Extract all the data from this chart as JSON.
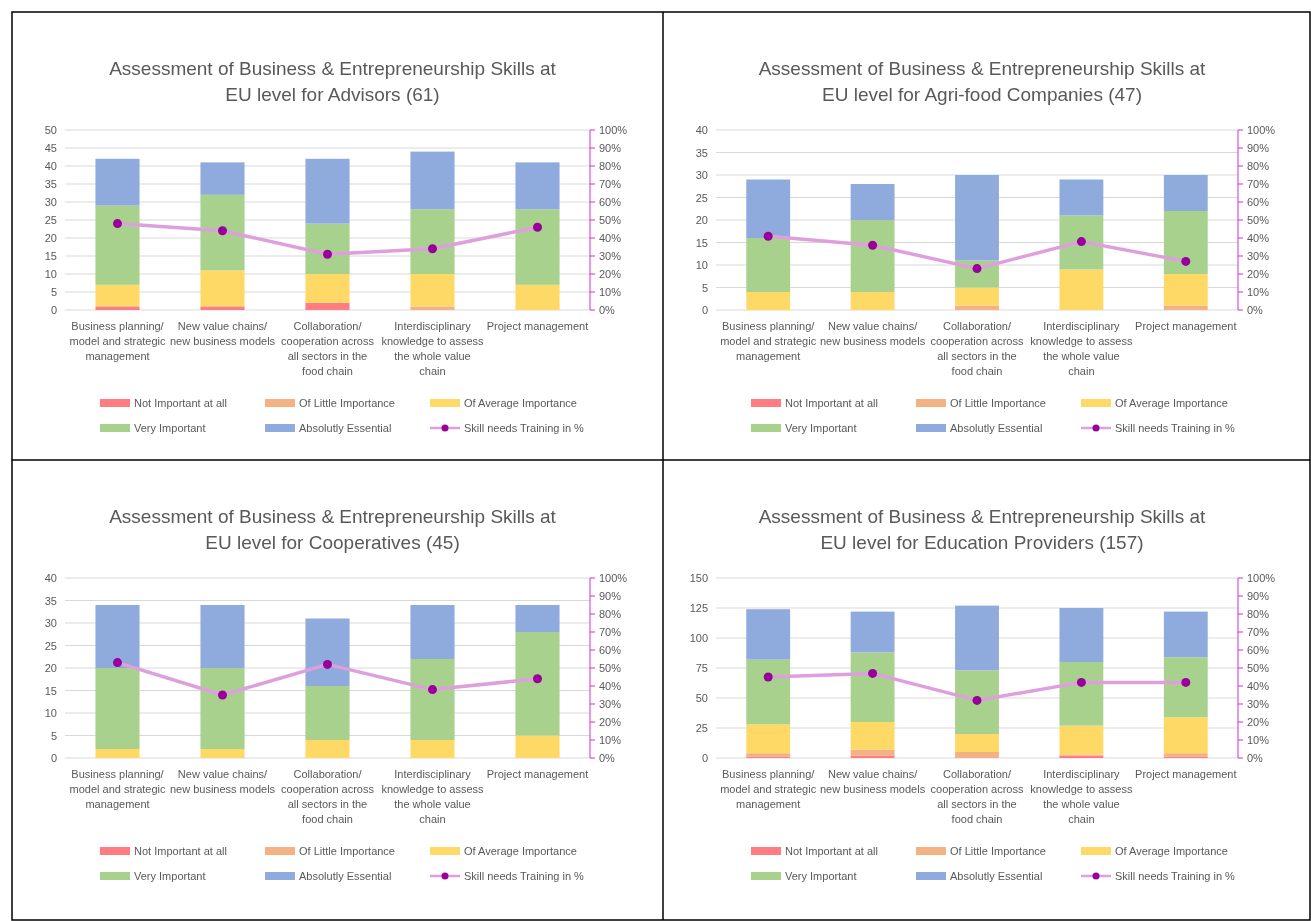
{
  "chart_data": [
    {
      "type": "bar",
      "title": "Assessment of Business & Entrepreneurship Skills at EU level for Advisors (61)",
      "stacked": true,
      "grid": "y",
      "legend": "bottom",
      "categories": [
        "Business planning/ model and strategic management",
        "New value chains/ new business models",
        "Collaboration/ cooperation across all sectors in the food chain",
        "Interdisciplinary knowledge to assess the whole value chain",
        "Project management"
      ],
      "ylim": [
        0,
        50
      ],
      "yticks": [
        0,
        5,
        10,
        15,
        20,
        25,
        30,
        35,
        40,
        45,
        50
      ],
      "y2lim": [
        0,
        100
      ],
      "y2ticks": [
        {
          "value": 0,
          "label": "0%"
        },
        {
          "value": 10,
          "label": "10%"
        },
        {
          "value": 20,
          "label": "20%"
        },
        {
          "value": 30,
          "label": "30%"
        },
        {
          "value": 40,
          "label": "40%"
        },
        {
          "value": 50,
          "label": "50%"
        },
        {
          "value": 60,
          "label": "60%"
        },
        {
          "value": 70,
          "label": "70%"
        },
        {
          "value": 80,
          "label": "80%"
        },
        {
          "value": 90,
          "label": "90%"
        },
        {
          "value": 100,
          "label": "100%"
        }
      ],
      "series": [
        {
          "name": "Not Important at all",
          "color": "#ff7c80",
          "values": [
            1,
            1,
            2,
            0,
            0
          ]
        },
        {
          "name": "Of Little Importance",
          "color": "#f4b183",
          "values": [
            0,
            0,
            0,
            1,
            0
          ]
        },
        {
          "name": "Of Average Importance",
          "color": "#ffd966",
          "values": [
            6,
            10,
            8,
            9,
            7
          ]
        },
        {
          "name": "Very Important",
          "color": "#a9d18e",
          "values": [
            22,
            21,
            14,
            18,
            21
          ]
        },
        {
          "name": "Absolutly Essential",
          "color": "#8faadc",
          "values": [
            13,
            9,
            18,
            16,
            13
          ]
        },
        {
          "name": "Skill needs Training in %",
          "type": "line",
          "axis": "y2",
          "color": "#dda0dd",
          "marker": "circle",
          "line_style": "solid",
          "values": [
            48,
            44,
            31,
            34,
            46
          ]
        }
      ]
    },
    {
      "type": "bar",
      "title": "Assessment of Business & Entrepreneurship Skills at EU level for Agri-food Companies (47)",
      "stacked": true,
      "grid": "y",
      "legend": "bottom",
      "categories": [
        "Business planning/ model and strategic management",
        "New value chains/ new business models",
        "Collaboration/ cooperation across all sectors in the food chain",
        "Interdisciplinary knowledge to assess the whole value chain",
        "Project management"
      ],
      "ylim": [
        0,
        40
      ],
      "yticks": [
        0,
        5,
        10,
        15,
        20,
        25,
        30,
        35,
        40
      ],
      "y2lim": [
        0,
        100
      ],
      "y2ticks": [
        {
          "value": 0,
          "label": "0%"
        },
        {
          "value": 10,
          "label": "10%"
        },
        {
          "value": 20,
          "label": "20%"
        },
        {
          "value": 30,
          "label": "30%"
        },
        {
          "value": 40,
          "label": "40%"
        },
        {
          "value": 50,
          "label": "50%"
        },
        {
          "value": 60,
          "label": "60%"
        },
        {
          "value": 70,
          "label": "70%"
        },
        {
          "value": 80,
          "label": "80%"
        },
        {
          "value": 90,
          "label": "90%"
        },
        {
          "value": 100,
          "label": "100%"
        }
      ],
      "series": [
        {
          "name": "Not Important at all",
          "color": "#ff7c80",
          "values": [
            0,
            0,
            0,
            0,
            0
          ]
        },
        {
          "name": "Of Little Importance",
          "color": "#f4b183",
          "values": [
            0,
            0,
            1,
            0,
            1
          ]
        },
        {
          "name": "Of Average Importance",
          "color": "#ffd966",
          "values": [
            4,
            4,
            4,
            9,
            7
          ]
        },
        {
          "name": "Very Important",
          "color": "#a9d18e",
          "values": [
            12,
            16,
            6,
            12,
            14
          ]
        },
        {
          "name": "Absolutly Essential",
          "color": "#8faadc",
          "values": [
            13,
            8,
            19,
            8,
            8
          ]
        },
        {
          "name": "Skill needs Training in %",
          "type": "line",
          "axis": "y2",
          "color": "#dda0dd",
          "marker": "circle",
          "line_style": "solid",
          "values": [
            41,
            36,
            23,
            38,
            27
          ]
        }
      ]
    },
    {
      "type": "bar",
      "title": "Assessment of Business & Entrepreneurship Skills at EU level for Cooperatives (45)",
      "stacked": true,
      "grid": "y",
      "legend": "bottom",
      "categories": [
        "Business planning/ model and strategic management",
        "New value chains/ new business models",
        "Collaboration/ cooperation across all sectors in the food chain",
        "Interdisciplinary knowledge to assess the whole value chain",
        "Project management"
      ],
      "ylim": [
        0,
        40
      ],
      "yticks": [
        0,
        5,
        10,
        15,
        20,
        25,
        30,
        35,
        40
      ],
      "y2lim": [
        0,
        100
      ],
      "y2ticks": [
        {
          "value": 0,
          "label": "0%"
        },
        {
          "value": 10,
          "label": "10%"
        },
        {
          "value": 20,
          "label": "20%"
        },
        {
          "value": 30,
          "label": "30%"
        },
        {
          "value": 40,
          "label": "40%"
        },
        {
          "value": 50,
          "label": "50%"
        },
        {
          "value": 60,
          "label": "60%"
        },
        {
          "value": 70,
          "label": "70%"
        },
        {
          "value": 80,
          "label": "80%"
        },
        {
          "value": 90,
          "label": "90%"
        },
        {
          "value": 100,
          "label": "100%"
        }
      ],
      "series": [
        {
          "name": "Not Important at all",
          "color": "#ff7c80",
          "values": [
            0,
            0,
            0,
            0,
            0
          ]
        },
        {
          "name": "Of Little Importance",
          "color": "#f4b183",
          "values": [
            0,
            0,
            0,
            0,
            0
          ]
        },
        {
          "name": "Of Average Importance",
          "color": "#ffd966",
          "values": [
            2,
            2,
            4,
            4,
            5
          ]
        },
        {
          "name": "Very Important",
          "color": "#a9d18e",
          "values": [
            18,
            18,
            12,
            18,
            23
          ]
        },
        {
          "name": "Absolutly Essential",
          "color": "#8faadc",
          "values": [
            14,
            14,
            15,
            12,
            6
          ]
        },
        {
          "name": "Skill needs Training in %",
          "type": "line",
          "axis": "y2",
          "color": "#dda0dd",
          "marker": "circle",
          "line_style": "solid",
          "values": [
            53,
            35,
            52,
            38,
            44
          ]
        }
      ]
    },
    {
      "type": "bar",
      "title": "Assessment of Business & Entrepreneurship Skills at EU level for Education Providers (157)",
      "stacked": true,
      "grid": "y",
      "legend": "bottom",
      "categories": [
        "Business planning/ model and strategic management",
        "New value chains/ new business models",
        "Collaboration/ cooperation across all sectors in the food chain",
        "Interdisciplinary knowledge to assess the whole value chain",
        "Project management"
      ],
      "ylim": [
        0,
        150
      ],
      "yticks": [
        0,
        25,
        50,
        75,
        100,
        125,
        150
      ],
      "y2lim": [
        0,
        100
      ],
      "y2ticks": [
        {
          "value": 0,
          "label": "0%"
        },
        {
          "value": 10,
          "label": "10%"
        },
        {
          "value": 20,
          "label": "20%"
        },
        {
          "value": 30,
          "label": "30%"
        },
        {
          "value": 40,
          "label": "40%"
        },
        {
          "value": 50,
          "label": "50%"
        },
        {
          "value": 60,
          "label": "60%"
        },
        {
          "value": 70,
          "label": "70%"
        },
        {
          "value": 80,
          "label": "80%"
        },
        {
          "value": 90,
          "label": "90%"
        },
        {
          "value": 100,
          "label": "100%"
        }
      ],
      "series": [
        {
          "name": "Not Important at all",
          "color": "#ff7c80",
          "values": [
            1,
            2,
            0,
            2,
            1
          ]
        },
        {
          "name": "Of Little Importance",
          "color": "#f4b183",
          "values": [
            3,
            5,
            5,
            1,
            3
          ]
        },
        {
          "name": "Of Average Importance",
          "color": "#ffd966",
          "values": [
            24,
            23,
            15,
            24,
            30
          ]
        },
        {
          "name": "Very Important",
          "color": "#a9d18e",
          "values": [
            54,
            58,
            53,
            53,
            50
          ]
        },
        {
          "name": "Absolutly Essential",
          "color": "#8faadc",
          "values": [
            42,
            34,
            54,
            45,
            38
          ]
        },
        {
          "name": "Skill needs Training in %",
          "type": "line",
          "axis": "y2",
          "color": "#dda0dd",
          "marker": "circle",
          "line_style": "solid",
          "values": [
            45,
            47,
            32,
            42,
            42
          ]
        }
      ]
    }
  ]
}
